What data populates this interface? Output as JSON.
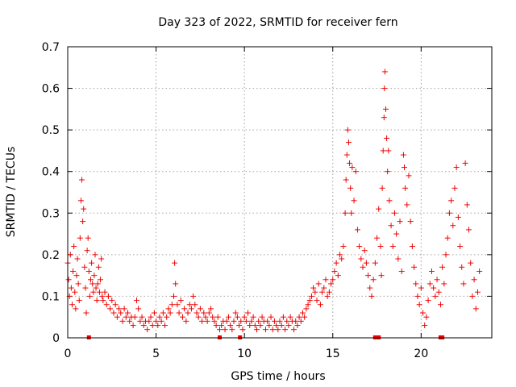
{
  "chart_data": {
    "type": "scatter",
    "title": "Day 323 of 2022, SRMTID for receiver fern",
    "xlabel": "GPS time / hours",
    "ylabel": "SRMTID / TECUs",
    "xlim": [
      0,
      24
    ],
    "ylim": [
      0,
      0.7
    ],
    "xticks": [
      0,
      5,
      10,
      15,
      20
    ],
    "yticks": [
      0,
      0.1,
      0.2,
      0.3,
      0.4,
      0.5,
      0.6,
      0.7
    ],
    "xtick_labels": [
      "0",
      "5",
      "10",
      "15",
      "20"
    ],
    "ytick_labels": [
      "0",
      "0.1",
      "0.2",
      "0.3",
      "0.4",
      "0.5",
      "0.6",
      "0.7"
    ],
    "grid": true,
    "marker": "+",
    "color": "#ee0000",
    "series": [
      {
        "name": "SRMTID",
        "points": [
          [
            0.0,
            0.18
          ],
          [
            0.05,
            0.14
          ],
          [
            0.1,
            0.1
          ],
          [
            0.15,
            0.2
          ],
          [
            0.2,
            0.12
          ],
          [
            0.25,
            0.08
          ],
          [
            0.3,
            0.16
          ],
          [
            0.35,
            0.22
          ],
          [
            0.4,
            0.11
          ],
          [
            0.45,
            0.07
          ],
          [
            0.5,
            0.15
          ],
          [
            0.55,
            0.19
          ],
          [
            0.6,
            0.13
          ],
          [
            0.65,
            0.09
          ],
          [
            0.7,
            0.24
          ],
          [
            0.75,
            0.33
          ],
          [
            0.8,
            0.38
          ],
          [
            0.85,
            0.28
          ],
          [
            0.9,
            0.31
          ],
          [
            0.95,
            0.17
          ],
          [
            1.0,
            0.12
          ],
          [
            1.05,
            0.06
          ],
          [
            1.1,
            0.21
          ],
          [
            1.15,
            0.24
          ],
          [
            1.2,
            0.16
          ],
          [
            1.25,
            0.1
          ],
          [
            1.3,
            0.14
          ],
          [
            1.35,
            0.18
          ],
          [
            1.4,
            0.13
          ],
          [
            1.45,
            0.11
          ],
          [
            1.5,
            0.15
          ],
          [
            1.55,
            0.2
          ],
          [
            1.6,
            0.12
          ],
          [
            1.65,
            0.09
          ],
          [
            1.7,
            0.13
          ],
          [
            1.75,
            0.17
          ],
          [
            1.8,
            0.11
          ],
          [
            1.85,
            0.14
          ],
          [
            1.9,
            0.19
          ],
          [
            1.95,
            0.1
          ],
          [
            2.0,
            0.09
          ],
          [
            2.1,
            0.11
          ],
          [
            2.2,
            0.08
          ],
          [
            2.3,
            0.1
          ],
          [
            2.4,
            0.07
          ],
          [
            2.5,
            0.09
          ],
          [
            2.6,
            0.06
          ],
          [
            2.7,
            0.08
          ],
          [
            2.8,
            0.05
          ],
          [
            2.9,
            0.07
          ],
          [
            3.0,
            0.06
          ],
          [
            3.1,
            0.04
          ],
          [
            3.2,
            0.07
          ],
          [
            3.3,
            0.05
          ],
          [
            3.4,
            0.06
          ],
          [
            3.5,
            0.04
          ],
          [
            3.6,
            0.05
          ],
          [
            3.7,
            0.03
          ],
          [
            3.8,
            0.05
          ],
          [
            3.9,
            0.09
          ],
          [
            4.0,
            0.07
          ],
          [
            4.1,
            0.04
          ],
          [
            4.2,
            0.05
          ],
          [
            4.3,
            0.03
          ],
          [
            4.4,
            0.04
          ],
          [
            4.5,
            0.02
          ],
          [
            4.6,
            0.04
          ],
          [
            4.7,
            0.05
          ],
          [
            4.8,
            0.03
          ],
          [
            4.9,
            0.06
          ],
          [
            5.0,
            0.04
          ],
          [
            5.1,
            0.03
          ],
          [
            5.2,
            0.05
          ],
          [
            5.3,
            0.04
          ],
          [
            5.4,
            0.06
          ],
          [
            5.5,
            0.03
          ],
          [
            5.6,
            0.05
          ],
          [
            5.7,
            0.07
          ],
          [
            5.8,
            0.06
          ],
          [
            5.9,
            0.08
          ],
          [
            6.0,
            0.1
          ],
          [
            6.05,
            0.18
          ],
          [
            6.1,
            0.13
          ],
          [
            6.2,
            0.08
          ],
          [
            6.3,
            0.06
          ],
          [
            6.4,
            0.09
          ],
          [
            6.5,
            0.05
          ],
          [
            6.6,
            0.07
          ],
          [
            6.7,
            0.04
          ],
          [
            6.8,
            0.06
          ],
          [
            6.9,
            0.08
          ],
          [
            7.0,
            0.07
          ],
          [
            7.1,
            0.1
          ],
          [
            7.2,
            0.08
          ],
          [
            7.3,
            0.06
          ],
          [
            7.4,
            0.05
          ],
          [
            7.5,
            0.07
          ],
          [
            7.6,
            0.04
          ],
          [
            7.7,
            0.06
          ],
          [
            7.8,
            0.05
          ],
          [
            7.9,
            0.04
          ],
          [
            8.0,
            0.06
          ],
          [
            8.1,
            0.07
          ],
          [
            8.2,
            0.05
          ],
          [
            8.3,
            0.04
          ],
          [
            8.4,
            0.03
          ],
          [
            8.5,
            0.05
          ],
          [
            8.6,
            0.02
          ],
          [
            8.7,
            0.03
          ],
          [
            8.8,
            0.04
          ],
          [
            8.9,
            0.02
          ],
          [
            9.0,
            0.04
          ],
          [
            9.1,
            0.05
          ],
          [
            9.2,
            0.03
          ],
          [
            9.3,
            0.02
          ],
          [
            9.4,
            0.04
          ],
          [
            9.5,
            0.06
          ],
          [
            9.6,
            0.05
          ],
          [
            9.7,
            0.03
          ],
          [
            9.8,
            0.04
          ],
          [
            9.9,
            0.02
          ],
          [
            10.0,
            0.05
          ],
          [
            10.1,
            0.04
          ],
          [
            10.2,
            0.06
          ],
          [
            10.3,
            0.03
          ],
          [
            10.4,
            0.04
          ],
          [
            10.5,
            0.05
          ],
          [
            10.6,
            0.03
          ],
          [
            10.7,
            0.02
          ],
          [
            10.8,
            0.04
          ],
          [
            10.9,
            0.03
          ],
          [
            11.0,
            0.05
          ],
          [
            11.1,
            0.04
          ],
          [
            11.2,
            0.02
          ],
          [
            11.3,
            0.04
          ],
          [
            11.4,
            0.03
          ],
          [
            11.5,
            0.05
          ],
          [
            11.6,
            0.02
          ],
          [
            11.7,
            0.04
          ],
          [
            11.8,
            0.03
          ],
          [
            11.9,
            0.02
          ],
          [
            12.0,
            0.04
          ],
          [
            12.1,
            0.03
          ],
          [
            12.2,
            0.05
          ],
          [
            12.3,
            0.02
          ],
          [
            12.4,
            0.04
          ],
          [
            12.5,
            0.03
          ],
          [
            12.6,
            0.05
          ],
          [
            12.7,
            0.04
          ],
          [
            12.8,
            0.02
          ],
          [
            12.9,
            0.04
          ],
          [
            13.0,
            0.03
          ],
          [
            13.1,
            0.05
          ],
          [
            13.2,
            0.04
          ],
          [
            13.3,
            0.06
          ],
          [
            13.4,
            0.05
          ],
          [
            13.5,
            0.07
          ],
          [
            13.6,
            0.08
          ],
          [
            13.7,
            0.09
          ],
          [
            13.8,
            0.1
          ],
          [
            13.9,
            0.12
          ],
          [
            14.0,
            0.11
          ],
          [
            14.1,
            0.09
          ],
          [
            14.2,
            0.13
          ],
          [
            14.3,
            0.08
          ],
          [
            14.4,
            0.11
          ],
          [
            14.5,
            0.12
          ],
          [
            14.6,
            0.14
          ],
          [
            14.7,
            0.1
          ],
          [
            14.8,
            0.11
          ],
          [
            14.9,
            0.13
          ],
          [
            15.0,
            0.14
          ],
          [
            15.1,
            0.16
          ],
          [
            15.2,
            0.18
          ],
          [
            15.3,
            0.15
          ],
          [
            15.4,
            0.2
          ],
          [
            15.5,
            0.19
          ],
          [
            15.6,
            0.22
          ],
          [
            15.7,
            0.3
          ],
          [
            15.75,
            0.38
          ],
          [
            15.8,
            0.44
          ],
          [
            15.85,
            0.5
          ],
          [
            15.9,
            0.47
          ],
          [
            15.95,
            0.42
          ],
          [
            16.0,
            0.36
          ],
          [
            16.05,
            0.3
          ],
          [
            16.1,
            0.41
          ],
          [
            16.2,
            0.33
          ],
          [
            16.3,
            0.4
          ],
          [
            16.4,
            0.26
          ],
          [
            16.5,
            0.22
          ],
          [
            16.6,
            0.19
          ],
          [
            16.7,
            0.17
          ],
          [
            16.8,
            0.21
          ],
          [
            16.9,
            0.18
          ],
          [
            17.0,
            0.15
          ],
          [
            17.1,
            0.12
          ],
          [
            17.2,
            0.1
          ],
          [
            17.3,
            0.14
          ],
          [
            17.4,
            0.18
          ],
          [
            17.5,
            0.24
          ],
          [
            17.6,
            0.31
          ],
          [
            17.7,
            0.22
          ],
          [
            17.75,
            0.15
          ],
          [
            17.8,
            0.36
          ],
          [
            17.85,
            0.45
          ],
          [
            17.9,
            0.53
          ],
          [
            17.92,
            0.6
          ],
          [
            17.95,
            0.64
          ],
          [
            18.0,
            0.55
          ],
          [
            18.05,
            0.48
          ],
          [
            18.1,
            0.4
          ],
          [
            18.15,
            0.45
          ],
          [
            18.2,
            0.33
          ],
          [
            18.3,
            0.27
          ],
          [
            18.4,
            0.22
          ],
          [
            18.5,
            0.3
          ],
          [
            18.6,
            0.25
          ],
          [
            18.7,
            0.19
          ],
          [
            18.8,
            0.28
          ],
          [
            18.9,
            0.16
          ],
          [
            19.0,
            0.44
          ],
          [
            19.05,
            0.41
          ],
          [
            19.1,
            0.36
          ],
          [
            19.2,
            0.32
          ],
          [
            19.3,
            0.39
          ],
          [
            19.4,
            0.28
          ],
          [
            19.5,
            0.22
          ],
          [
            19.6,
            0.17
          ],
          [
            19.7,
            0.13
          ],
          [
            19.8,
            0.1
          ],
          [
            19.9,
            0.08
          ],
          [
            20.0,
            0.12
          ],
          [
            20.1,
            0.06
          ],
          [
            20.2,
            0.03
          ],
          [
            20.3,
            0.05
          ],
          [
            20.4,
            0.09
          ],
          [
            20.5,
            0.13
          ],
          [
            20.6,
            0.16
          ],
          [
            20.7,
            0.12
          ],
          [
            20.8,
            0.1
          ],
          [
            20.9,
            0.14
          ],
          [
            21.0,
            0.11
          ],
          [
            21.1,
            0.08
          ],
          [
            21.2,
            0.17
          ],
          [
            21.3,
            0.13
          ],
          [
            21.4,
            0.2
          ],
          [
            21.5,
            0.24
          ],
          [
            21.6,
            0.3
          ],
          [
            21.7,
            0.33
          ],
          [
            21.8,
            0.27
          ],
          [
            21.9,
            0.36
          ],
          [
            22.0,
            0.41
          ],
          [
            22.1,
            0.29
          ],
          [
            22.2,
            0.22
          ],
          [
            22.3,
            0.17
          ],
          [
            22.4,
            0.13
          ],
          [
            22.5,
            0.42
          ],
          [
            22.6,
            0.32
          ],
          [
            22.7,
            0.26
          ],
          [
            22.8,
            0.18
          ],
          [
            22.9,
            0.1
          ],
          [
            23.0,
            0.14
          ],
          [
            23.1,
            0.07
          ],
          [
            23.2,
            0.11
          ],
          [
            23.3,
            0.16
          ]
        ]
      }
    ],
    "zero_markers": [
      1.2,
      8.6,
      9.75,
      17.4,
      17.6,
      21.1,
      21.2
    ]
  }
}
